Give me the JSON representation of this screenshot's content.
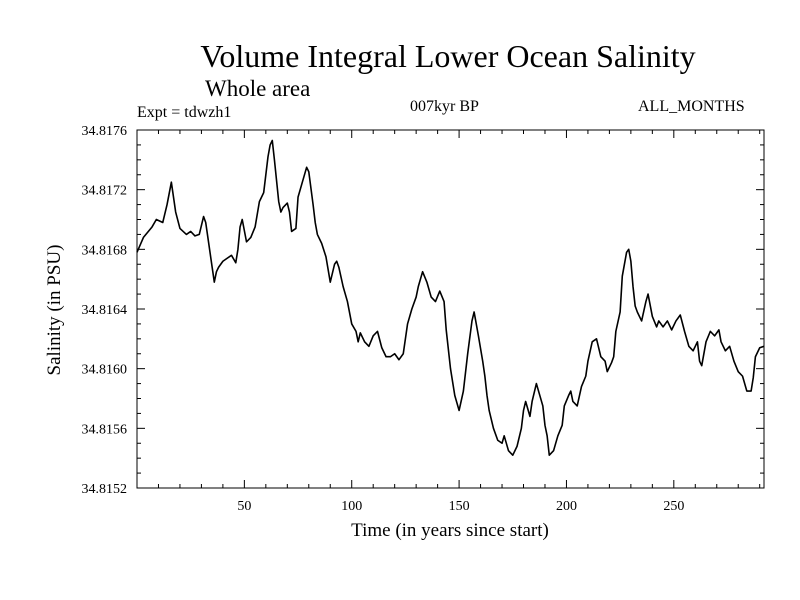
{
  "header": {
    "title": "Volume Integral Lower Ocean Salinity",
    "subtitle": "Whole area",
    "experiment": "Expt = tdwzh1",
    "period": "007kyr BP",
    "months": "ALL_MONTHS"
  },
  "chart_data": {
    "type": "line",
    "title": "Volume Integral Lower Ocean Salinity",
    "subtitle": "Whole area",
    "xlabel": "Time (in years since start)",
    "ylabel": "Salinity (in PSU)",
    "xlim": [
      0,
      292
    ],
    "ylim": [
      34.8152,
      34.8176
    ],
    "xticks": [
      50,
      100,
      150,
      200,
      250
    ],
    "xtick_labels": [
      "50",
      "100",
      "150",
      "200",
      "250"
    ],
    "yticks": [
      34.8152,
      34.8156,
      34.816,
      34.8164,
      34.8168,
      34.8172,
      34.8176
    ],
    "ytick_labels": [
      "34.8152",
      "34.8156",
      "34.8160",
      "34.8164",
      "34.8168",
      "34.8172",
      "34.8176"
    ],
    "grid": false,
    "series": [
      {
        "name": "tdwzh1",
        "x": [
          0,
          3,
          7,
          9,
          12,
          14,
          16,
          18,
          20,
          23,
          25,
          27,
          29,
          31,
          32,
          33,
          35,
          36,
          37,
          38,
          40,
          42,
          44,
          46,
          47,
          48,
          49,
          51,
          53,
          55,
          57,
          59,
          61,
          62,
          63,
          64,
          66,
          67,
          68,
          70,
          71,
          72,
          74,
          75,
          77,
          79,
          80,
          82,
          83,
          84,
          86,
          88,
          90,
          92,
          93,
          94,
          96,
          98,
          100,
          102,
          103,
          104,
          106,
          108,
          110,
          112,
          114,
          116,
          118,
          120,
          122,
          124,
          126,
          128,
          130,
          131,
          133,
          135,
          137,
          139,
          141,
          143,
          144,
          146,
          148,
          150,
          152,
          154,
          156,
          157,
          159,
          161,
          162,
          163,
          164,
          166,
          168,
          170,
          171,
          173,
          175,
          177,
          179,
          180,
          181,
          183,
          184,
          186,
          187,
          189,
          190,
          191,
          192,
          194,
          196,
          198,
          199,
          201,
          202,
          203,
          205,
          207,
          209,
          210,
          212,
          214,
          216,
          218,
          219,
          221,
          222,
          223,
          225,
          226,
          228,
          229,
          230,
          231,
          232,
          233,
          235,
          237,
          238,
          240,
          242,
          243,
          245,
          247,
          249,
          251,
          253,
          255,
          257,
          259,
          261,
          262,
          263,
          265,
          267,
          269,
          271,
          272,
          274,
          276,
          278,
          280,
          282,
          284,
          286,
          287,
          288,
          290,
          292
        ],
        "y": [
          34.81678,
          34.81688,
          34.81695,
          34.817,
          34.81698,
          34.8171,
          34.81725,
          34.81705,
          34.81694,
          34.8169,
          34.81692,
          34.81689,
          34.8169,
          34.81702,
          34.81698,
          34.81688,
          34.81668,
          34.81658,
          34.81665,
          34.81668,
          34.81672,
          34.81674,
          34.81676,
          34.81671,
          34.8168,
          34.81695,
          34.817,
          34.81685,
          34.81688,
          34.81695,
          34.81712,
          34.81718,
          34.81742,
          34.8175,
          34.81753,
          34.8174,
          34.81712,
          34.81705,
          34.81708,
          34.81711,
          34.81705,
          34.81692,
          34.81694,
          34.81715,
          34.81725,
          34.81735,
          34.81732,
          34.8171,
          34.81698,
          34.8169,
          34.81684,
          34.81675,
          34.81658,
          34.8167,
          34.81672,
          34.81668,
          34.81655,
          34.81645,
          34.8163,
          34.81625,
          34.81618,
          34.81624,
          34.81618,
          34.81615,
          34.81622,
          34.81625,
          34.81614,
          34.81608,
          34.81608,
          34.8161,
          34.81606,
          34.8161,
          34.8163,
          34.8164,
          34.81648,
          34.81655,
          34.81665,
          34.81658,
          34.81648,
          34.81645,
          34.81652,
          34.81645,
          34.81626,
          34.816,
          34.81582,
          34.81572,
          34.81585,
          34.8161,
          34.81632,
          34.81638,
          34.81622,
          34.81605,
          34.81595,
          34.81582,
          34.81572,
          34.8156,
          34.81552,
          34.8155,
          34.81555,
          34.81545,
          34.81542,
          34.81548,
          34.8156,
          34.81572,
          34.81578,
          34.81568,
          34.81578,
          34.8159,
          34.81585,
          34.81575,
          34.81562,
          34.81555,
          34.81542,
          34.81545,
          34.81555,
          34.81562,
          34.81575,
          34.81582,
          34.81585,
          34.81578,
          34.81575,
          34.81588,
          34.81595,
          34.81605,
          34.81618,
          34.8162,
          34.81608,
          34.81605,
          34.81598,
          34.81604,
          34.81608,
          34.81625,
          34.81638,
          34.81662,
          34.81678,
          34.8168,
          34.81672,
          34.81655,
          34.81642,
          34.81638,
          34.81632,
          34.81645,
          34.8165,
          34.81635,
          34.81628,
          34.81632,
          34.81628,
          34.81632,
          34.81626,
          34.81632,
          34.81636,
          34.81625,
          34.81615,
          34.81612,
          34.81618,
          34.81605,
          34.81602,
          34.81618,
          34.81625,
          34.81622,
          34.81626,
          34.81618,
          34.81612,
          34.81615,
          34.81605,
          34.81598,
          34.81595,
          34.81585,
          34.81585,
          34.81594,
          34.81608,
          34.81614,
          34.81615
        ]
      }
    ]
  }
}
